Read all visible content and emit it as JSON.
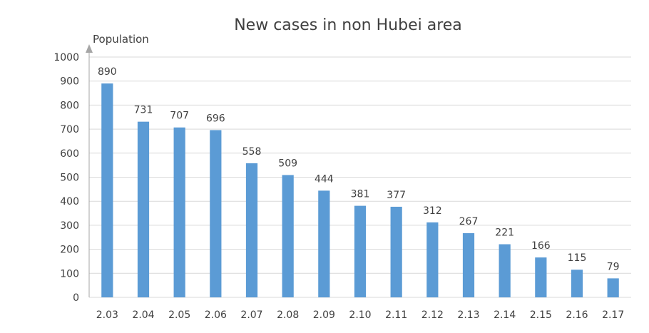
{
  "chart_data": {
    "type": "bar",
    "title": "New cases in non Hubei area",
    "ylabel": "Population",
    "xlabel": "",
    "ylim": [
      0,
      1000
    ],
    "y_ticks": [
      0,
      100,
      200,
      300,
      400,
      500,
      600,
      700,
      800,
      900,
      1000
    ],
    "grid": true,
    "legend": "none",
    "bar_color": "#5b9bd5",
    "categories": [
      "2.03",
      "2.04",
      "2.05",
      "2.06",
      "2.07",
      "2.08",
      "2.09",
      "2.10",
      "2.11",
      "2.12",
      "2.13",
      "2.14",
      "2.15",
      "2.16",
      "2.17"
    ],
    "values": [
      890,
      731,
      707,
      696,
      558,
      509,
      444,
      381,
      377,
      312,
      267,
      221,
      166,
      115,
      79
    ]
  }
}
